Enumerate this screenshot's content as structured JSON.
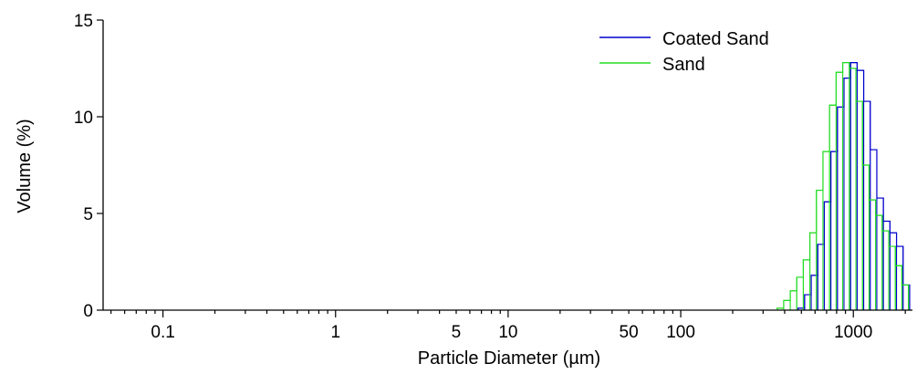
{
  "chart_data": {
    "type": "histogram-step",
    "xlabel": "Particle Diameter (µm)",
    "ylabel": "Volume (%)",
    "xscale": "log",
    "xlim": [
      0.045,
      2200
    ],
    "ylim": [
      0,
      15
    ],
    "x_tick_labels": [
      "0.1",
      "1",
      "5",
      "10",
      "50",
      "100",
      "1000"
    ],
    "x_tick_values": [
      0.1,
      1,
      5,
      10,
      50,
      100,
      1000
    ],
    "y_tick_labels": [
      "0",
      "5",
      "10",
      "15"
    ],
    "y_tick_values": [
      0,
      5,
      10,
      15
    ],
    "legend_position": "top-right",
    "series": [
      {
        "name": "Coated Sand",
        "color": "#0000cc",
        "bin_edges": [
          478,
          522,
          570,
          622,
          679,
          741,
          809,
          883,
          964,
          1052,
          1148,
          1253,
          1368,
          1493,
          1630,
          1779,
          1942,
          2120
        ],
        "values": [
          0.1,
          0.8,
          1.8,
          3.4,
          5.6,
          8.2,
          10.5,
          12.0,
          12.8,
          12.4,
          10.8,
          8.3,
          5.8,
          4.6,
          4.0,
          3.3,
          1.3
        ]
      },
      {
        "name": "Sand",
        "color": "#22dd22",
        "bin_edges": [
          362,
          395,
          431,
          470,
          513,
          560,
          611,
          667,
          728,
          795,
          868,
          948,
          1035,
          1130,
          1233,
          1346,
          1469,
          1604,
          1751,
          1911,
          2086
        ],
        "values": [
          0.1,
          0.5,
          1.0,
          1.7,
          2.6,
          4.0,
          6.2,
          8.2,
          10.6,
          12.3,
          12.8,
          12.5,
          10.8,
          7.5,
          5.7,
          4.9,
          4.1,
          3.3,
          2.3,
          1.3
        ]
      }
    ]
  }
}
